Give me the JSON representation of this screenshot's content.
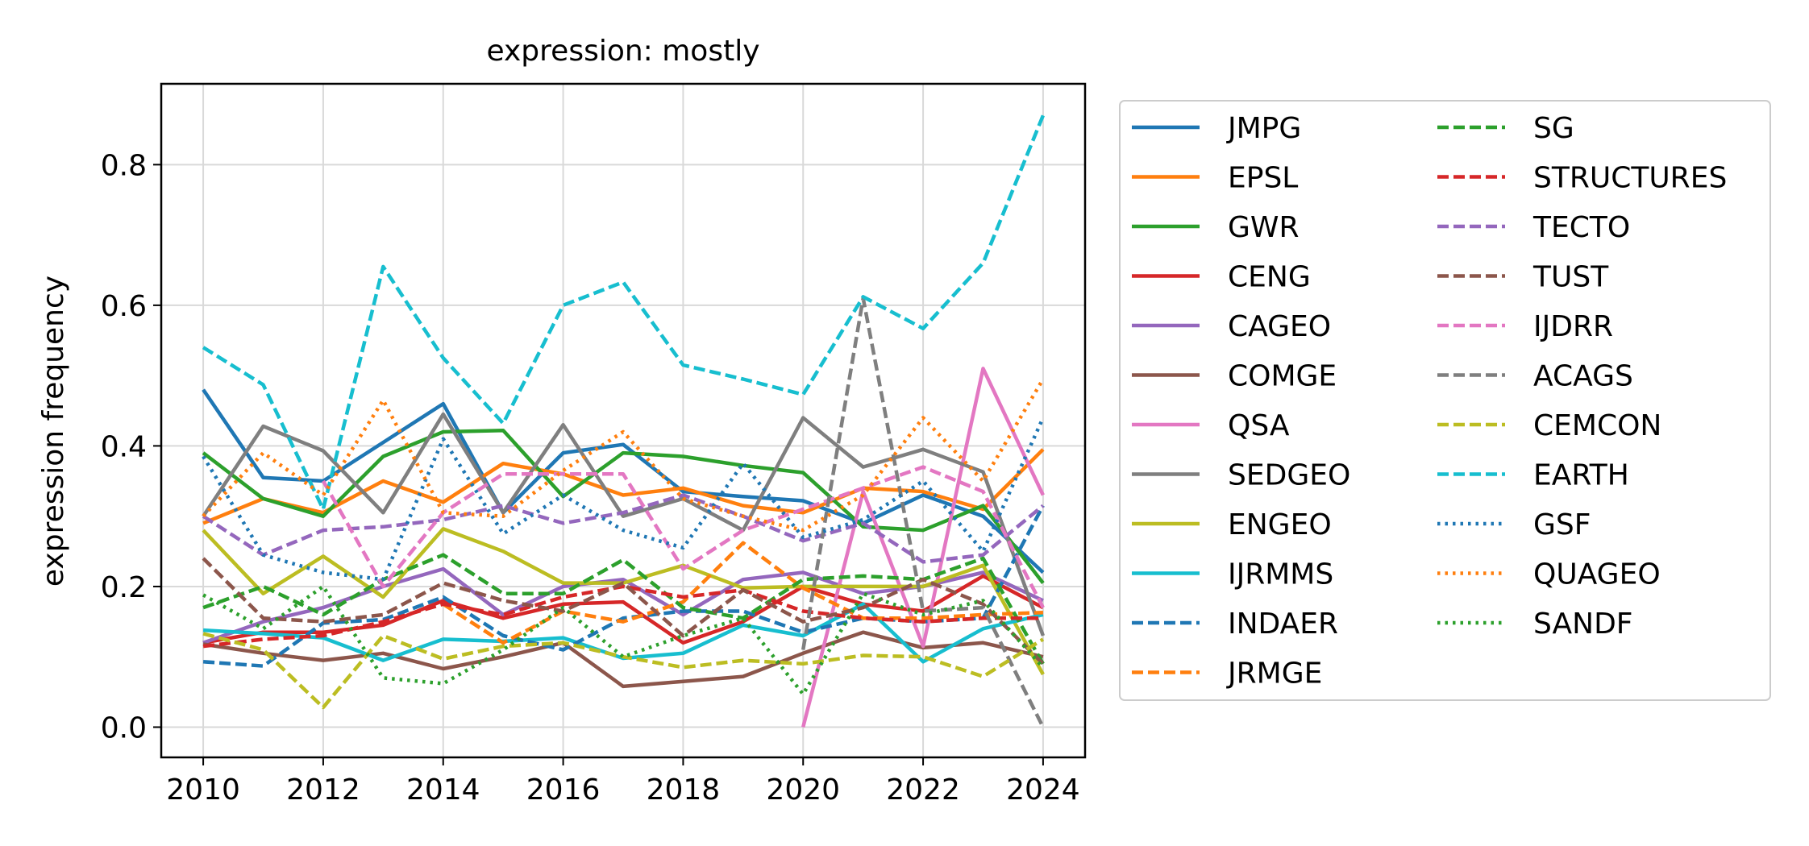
{
  "chart_data": {
    "type": "line",
    "title": "expression: mostly",
    "xlabel": "",
    "ylabel": "expression frequency",
    "xlim": [
      2009.3,
      2024.7
    ],
    "ylim": [
      -0.043,
      0.915
    ],
    "xticks": [
      2010,
      2012,
      2014,
      2016,
      2018,
      2020,
      2022,
      2024
    ],
    "yticks": [
      0.0,
      0.2,
      0.4,
      0.6,
      0.8
    ],
    "ytick_labels": [
      "0.0",
      "0.2",
      "0.4",
      "0.6",
      "0.8"
    ],
    "grid": true,
    "legend": "outside-right, 2 columns",
    "x": [
      2010,
      2011,
      2012,
      2013,
      2014,
      2015,
      2016,
      2017,
      2018,
      2019,
      2020,
      2021,
      2022,
      2023,
      2024
    ],
    "series": [
      {
        "name": "JMPG",
        "color": "#1f77b4",
        "style": "solid",
        "values": [
          0.48,
          0.355,
          0.35,
          0.405,
          0.46,
          0.305,
          0.39,
          0.402,
          0.335,
          0.328,
          0.322,
          0.29,
          0.33,
          0.3,
          0.22
        ]
      },
      {
        "name": "EPSL",
        "color": "#ff7f0e",
        "style": "solid",
        "values": [
          0.29,
          0.325,
          0.305,
          0.35,
          0.32,
          0.375,
          0.36,
          0.33,
          0.34,
          0.315,
          0.305,
          0.34,
          0.335,
          0.31,
          0.395
        ]
      },
      {
        "name": "GWR",
        "color": "#2ca02c",
        "style": "solid",
        "values": [
          0.39,
          0.325,
          0.3,
          0.385,
          0.42,
          0.422,
          0.328,
          0.39,
          0.385,
          0.372,
          0.362,
          0.285,
          0.28,
          0.315,
          0.205
        ]
      },
      {
        "name": "CENG",
        "color": "#d62728",
        "style": "solid",
        "values": [
          0.12,
          0.135,
          0.135,
          0.145,
          0.18,
          0.155,
          0.175,
          0.178,
          0.12,
          0.15,
          0.2,
          0.175,
          0.165,
          0.215,
          0.17
        ]
      },
      {
        "name": "CAGEO",
        "color": "#9467bd",
        "style": "solid",
        "values": [
          0.12,
          0.15,
          0.17,
          0.2,
          0.225,
          0.16,
          0.2,
          0.21,
          0.16,
          0.21,
          0.22,
          0.19,
          0.2,
          0.22,
          0.18
        ]
      },
      {
        "name": "COMGE",
        "color": "#8c564b",
        "style": "solid",
        "values": [
          0.118,
          0.105,
          0.095,
          0.105,
          0.083,
          0.1,
          0.12,
          0.058,
          0.065,
          0.072,
          0.105,
          0.135,
          0.113,
          0.12,
          0.1
        ]
      },
      {
        "name": "QSA",
        "color": "#e377c2",
        "style": "solid",
        "values": [
          null,
          null,
          null,
          null,
          null,
          null,
          null,
          null,
          null,
          null,
          0.0,
          0.335,
          0.115,
          0.51,
          0.33
        ]
      },
      {
        "name": "SEDGEO",
        "color": "#7f7f7f",
        "style": "solid",
        "values": [
          0.3,
          0.428,
          0.393,
          0.305,
          0.445,
          0.305,
          0.43,
          0.3,
          0.325,
          0.28,
          0.44,
          0.37,
          0.395,
          0.363,
          0.13
        ]
      },
      {
        "name": "ENGEO",
        "color": "#bcbd22",
        "style": "solid",
        "values": [
          0.28,
          0.19,
          0.243,
          0.185,
          0.282,
          0.25,
          0.205,
          0.205,
          0.23,
          0.198,
          0.2,
          0.2,
          0.2,
          0.23,
          0.075
        ]
      },
      {
        "name": "IJRMMS",
        "color": "#17becf",
        "style": "solid",
        "values": [
          0.138,
          0.133,
          0.127,
          0.095,
          0.125,
          0.122,
          0.127,
          0.098,
          0.105,
          0.145,
          0.13,
          0.175,
          0.093,
          0.14,
          0.16
        ]
      },
      {
        "name": "INDAER",
        "color": "#1f77b4",
        "style": "dashed",
        "values": [
          0.093,
          0.087,
          0.148,
          0.153,
          0.185,
          0.13,
          0.11,
          0.155,
          0.165,
          0.165,
          0.135,
          0.155,
          0.15,
          0.155,
          0.315
        ]
      },
      {
        "name": "JRMGE",
        "color": "#ff7f0e",
        "style": "dashed",
        "values": [
          null,
          null,
          null,
          null,
          0.175,
          0.12,
          0.165,
          0.15,
          0.178,
          0.262,
          0.198,
          0.155,
          0.155,
          0.16,
          0.163
        ]
      },
      {
        "name": "SG",
        "color": "#2ca02c",
        "style": "dashed",
        "values": [
          0.17,
          0.2,
          0.16,
          0.21,
          0.245,
          0.19,
          0.19,
          0.238,
          0.17,
          0.155,
          0.21,
          0.215,
          0.21,
          0.24,
          0.09
        ]
      },
      {
        "name": "STRUCTURES",
        "color": "#d62728",
        "style": "dashed",
        "values": [
          0.115,
          0.125,
          0.13,
          0.15,
          0.175,
          0.16,
          0.185,
          0.2,
          0.185,
          0.195,
          0.165,
          0.155,
          0.15,
          0.155,
          0.155
        ]
      },
      {
        "name": "TECTO",
        "color": "#9467bd",
        "style": "dashed",
        "values": [
          0.3,
          0.245,
          0.28,
          0.285,
          0.295,
          0.315,
          0.29,
          0.305,
          0.33,
          0.3,
          0.265,
          0.29,
          0.235,
          0.245,
          0.315
        ]
      },
      {
        "name": "TUST",
        "color": "#8c564b",
        "style": "dashed",
        "values": [
          0.24,
          0.155,
          0.15,
          0.16,
          0.205,
          0.18,
          0.165,
          0.205,
          0.13,
          0.195,
          0.15,
          0.17,
          0.21,
          0.175,
          0.09
        ]
      },
      {
        "name": "IJDRR",
        "color": "#e377c2",
        "style": "dashed",
        "values": [
          null,
          null,
          0.35,
          0.2,
          0.305,
          0.36,
          0.36,
          0.36,
          0.225,
          0.28,
          0.31,
          0.34,
          0.37,
          0.335,
          0.17
        ]
      },
      {
        "name": "ACAGS",
        "color": "#7f7f7f",
        "style": "dashed",
        "values": [
          null,
          null,
          null,
          null,
          null,
          null,
          null,
          null,
          null,
          null,
          0.11,
          0.61,
          0.165,
          0.17,
          0.0
        ]
      },
      {
        "name": "CEMCON",
        "color": "#bcbd22",
        "style": "dashed",
        "values": [
          0.133,
          0.11,
          0.028,
          0.13,
          0.097,
          0.115,
          0.12,
          0.1,
          0.085,
          0.095,
          0.09,
          0.102,
          0.1,
          0.072,
          0.125
        ]
      },
      {
        "name": "EARTH",
        "color": "#17becf",
        "style": "dashed",
        "values": [
          0.54,
          0.487,
          0.31,
          0.655,
          0.525,
          0.432,
          0.6,
          0.633,
          0.515,
          0.495,
          0.473,
          0.612,
          0.567,
          0.66,
          0.87
        ]
      },
      {
        "name": "GSF",
        "color": "#1f77b4",
        "style": "dotted",
        "values": [
          0.385,
          0.245,
          0.22,
          0.21,
          0.41,
          0.275,
          0.33,
          0.28,
          0.255,
          0.375,
          0.27,
          0.295,
          0.35,
          0.25,
          0.44
        ]
      },
      {
        "name": "QUAGEO",
        "color": "#ff7f0e",
        "style": "dotted",
        "values": [
          0.3,
          0.39,
          0.33,
          0.465,
          0.305,
          0.3,
          0.365,
          0.42,
          0.325,
          0.3,
          0.28,
          0.33,
          0.44,
          0.35,
          0.495
        ]
      },
      {
        "name": "SANDF",
        "color": "#2ca02c",
        "style": "dotted",
        "values": [
          0.188,
          0.14,
          0.2,
          0.07,
          0.062,
          0.11,
          0.17,
          0.1,
          0.13,
          0.155,
          0.047,
          0.19,
          0.16,
          0.18,
          0.085
        ]
      }
    ]
  }
}
